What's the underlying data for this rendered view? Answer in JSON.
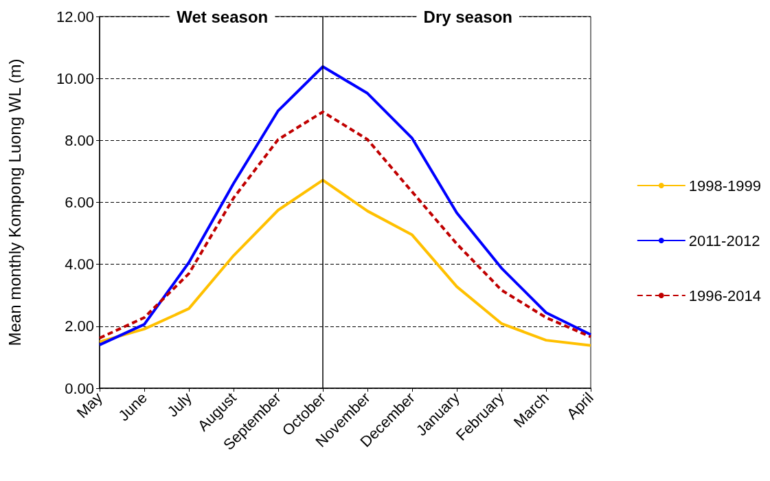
{
  "chart_data": {
    "type": "line",
    "ylabel": "Mean monthly Kompong Luong WL (m)",
    "categories": [
      "May",
      "June",
      "July",
      "August",
      "September",
      "October",
      "November",
      "December",
      "January",
      "February",
      "March",
      "April"
    ],
    "series": [
      {
        "name": "1998-1999",
        "color": "#ffc000",
        "line_style": "solid",
        "values": [
          1.5,
          1.91,
          2.57,
          4.28,
          5.75,
          6.72,
          5.72,
          4.95,
          3.28,
          2.09,
          1.55,
          1.38
        ]
      },
      {
        "name": "2011-2012",
        "color": "#0000ff",
        "line_style": "solid",
        "values": [
          1.4,
          2.06,
          4.06,
          6.61,
          8.96,
          10.38,
          9.52,
          8.07,
          5.66,
          3.88,
          2.44,
          1.73
        ]
      },
      {
        "name": "1996-2014",
        "color": "#c00000",
        "line_style": "dashed",
        "values": [
          1.62,
          2.28,
          3.7,
          6.14,
          8.03,
          8.92,
          8.03,
          6.34,
          4.66,
          3.17,
          2.28,
          1.66
        ]
      }
    ],
    "ylim": [
      0,
      12
    ],
    "yticks": [
      {
        "value": 0,
        "label": "0.00"
      },
      {
        "value": 2,
        "label": "2.00"
      },
      {
        "value": 4,
        "label": "4.00"
      },
      {
        "value": 6,
        "label": "6.00"
      },
      {
        "value": 8,
        "label": "8.00"
      },
      {
        "value": 10,
        "label": "10.00"
      },
      {
        "value": 12,
        "label": "12.00"
      }
    ],
    "grid": "y",
    "legend": "right",
    "marker": "none",
    "ref_lines": [
      {
        "axis": "x",
        "value": "October",
        "color": "#000000",
        "line_style": "solid"
      }
    ],
    "annotations": [
      "Wet season",
      "Dry season"
    ]
  }
}
